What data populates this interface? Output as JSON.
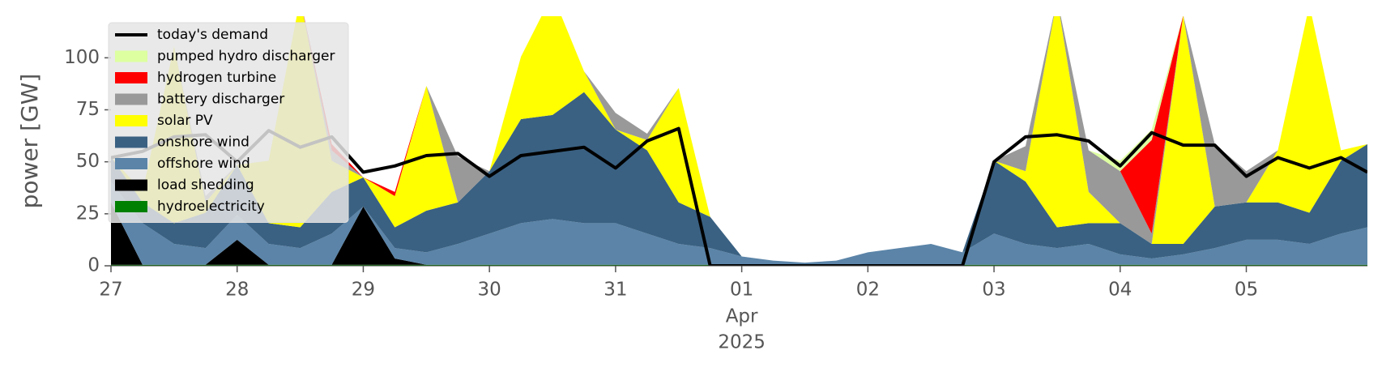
{
  "chart_data": {
    "type": "area",
    "ylabel": "power [GW]",
    "x": [
      0,
      0.25,
      0.5,
      0.75,
      1,
      1.25,
      1.5,
      1.75,
      2,
      2.25,
      2.5,
      2.75,
      3,
      3.25,
      3.5,
      3.75,
      4,
      4.25,
      4.5,
      4.75,
      5,
      5.25,
      5.5,
      5.75,
      6,
      6.25,
      6.5,
      6.75,
      7,
      7.25,
      7.5,
      7.75,
      8,
      8.25,
      8.5,
      8.75,
      9,
      9.25,
      9.5,
      9.75,
      9.96
    ],
    "xlim": [
      0,
      9.96
    ],
    "xticks": [
      {
        "value": 0,
        "label": "27"
      },
      {
        "value": 1,
        "label": "28"
      },
      {
        "value": 2,
        "label": "29"
      },
      {
        "value": 3,
        "label": "30"
      },
      {
        "value": 4,
        "label": "31"
      },
      {
        "value": 5,
        "label": "01"
      },
      {
        "value": 6,
        "label": "02"
      },
      {
        "value": 7,
        "label": "03"
      },
      {
        "value": 8,
        "label": "04"
      },
      {
        "value": 9,
        "label": "05"
      }
    ],
    "xtick_sublabel": {
      "value": 5,
      "lines": [
        "Apr",
        "2025"
      ]
    },
    "ylim": [
      0,
      120
    ],
    "yticks": [
      0,
      25,
      50,
      75,
      100
    ],
    "stacked": true,
    "series": [
      {
        "name": "hydroelectricity",
        "color": "#008000",
        "values": [
          0.5,
          0.5,
          0.5,
          0.5,
          0.5,
          0.5,
          0.5,
          0.5,
          0.5,
          0.5,
          0.5,
          0.5,
          0.5,
          0.5,
          0.5,
          0.5,
          0.5,
          0.5,
          0.5,
          0.5,
          0.5,
          0.5,
          0.5,
          0.5,
          0.5,
          0.5,
          0.5,
          0.5,
          0.5,
          0.5,
          0.5,
          0.5,
          0.5,
          0.5,
          0.5,
          0.5,
          0.5,
          0.5,
          0.5,
          0.5,
          0.5
        ]
      },
      {
        "name": "load shedding",
        "color": "#000000",
        "values": [
          30,
          0,
          0,
          0,
          12,
          0,
          0,
          0,
          28,
          3,
          0,
          0,
          0,
          0,
          0,
          0,
          0,
          0,
          0,
          0,
          0,
          0,
          0,
          0,
          0,
          0,
          0,
          0,
          0,
          0,
          0,
          0,
          0,
          0,
          0,
          0,
          0,
          0,
          0,
          0,
          0
        ]
      },
      {
        "name": "offshore wind",
        "color": "#5b84a8",
        "values": [
          10,
          20,
          10,
          8,
          12,
          10,
          8,
          15,
          0,
          5,
          6,
          10,
          15,
          20,
          22,
          20,
          20,
          15,
          10,
          8,
          4,
          2,
          1,
          2,
          6,
          8,
          10,
          6,
          15,
          10,
          8,
          10,
          5,
          3,
          5,
          8,
          12,
          12,
          10,
          15,
          18
        ]
      },
      {
        "name": "onshore wind",
        "color": "#3a6182",
        "values": [
          12,
          10,
          10,
          17,
          24,
          10,
          10,
          20,
          14,
          10,
          20,
          20,
          30,
          50,
          50,
          63,
          45,
          40,
          20,
          15,
          0,
          0,
          0,
          0,
          0,
          0,
          0,
          0,
          35,
          30,
          10,
          10,
          15,
          7,
          5,
          20,
          18,
          18,
          15,
          35,
          40
        ]
      },
      {
        "name": "solar PV",
        "color": "#ffff00",
        "values": [
          0,
          5,
          85,
          5,
          0,
          30,
          110,
          15,
          0,
          15,
          60,
          0,
          0,
          30,
          58,
          10,
          0,
          5,
          55,
          0,
          0,
          0,
          0,
          0,
          0,
          0,
          0,
          0,
          0,
          5,
          110,
          15,
          0,
          0,
          110,
          0,
          0,
          25,
          100,
          5,
          0
        ]
      },
      {
        "name": "battery discharger",
        "color": "#999999",
        "values": [
          0,
          0,
          0,
          3,
          0,
          0,
          0,
          5,
          0,
          0,
          0,
          22,
          0,
          0,
          0,
          0,
          8,
          3,
          0,
          0,
          0,
          0,
          0,
          0,
          0,
          0,
          0,
          0,
          0,
          12,
          0,
          20,
          25,
          5,
          0,
          30,
          15,
          0,
          0,
          0,
          0
        ]
      },
      {
        "name": "hydrogen turbine",
        "color": "#ff0000",
        "values": [
          0,
          0,
          0,
          0,
          0,
          0,
          0,
          3,
          0,
          2,
          0,
          0,
          0,
          0,
          0,
          0,
          0,
          0,
          0,
          0,
          0,
          0,
          0,
          0,
          0,
          0,
          0,
          0,
          0,
          0,
          0,
          0,
          0,
          45,
          0,
          0,
          0,
          0,
          0,
          0,
          0
        ]
      },
      {
        "name": "pumped hydro discharger",
        "color": "#ddffa0",
        "values": [
          0,
          0,
          0,
          0,
          0,
          0,
          0,
          0,
          0,
          0,
          0,
          0,
          0,
          0,
          0,
          0,
          0,
          0,
          0,
          0,
          0,
          0,
          0,
          0,
          0,
          0,
          0,
          0,
          0,
          0,
          0,
          0,
          5,
          5,
          0,
          0,
          0,
          0,
          0,
          0,
          0
        ]
      }
    ],
    "lines": [
      {
        "name": "today's demand",
        "color": "#000000",
        "values": [
          52,
          55,
          62,
          63,
          50,
          65,
          57,
          62,
          45,
          48,
          53,
          54,
          43,
          53,
          55,
          57,
          47,
          60,
          66,
          0,
          0,
          0,
          0,
          0,
          0,
          0,
          0,
          0,
          50,
          62,
          63,
          60,
          48,
          64,
          58,
          58,
          43,
          52,
          47,
          52,
          45
        ]
      }
    ],
    "legend": "upper left"
  }
}
